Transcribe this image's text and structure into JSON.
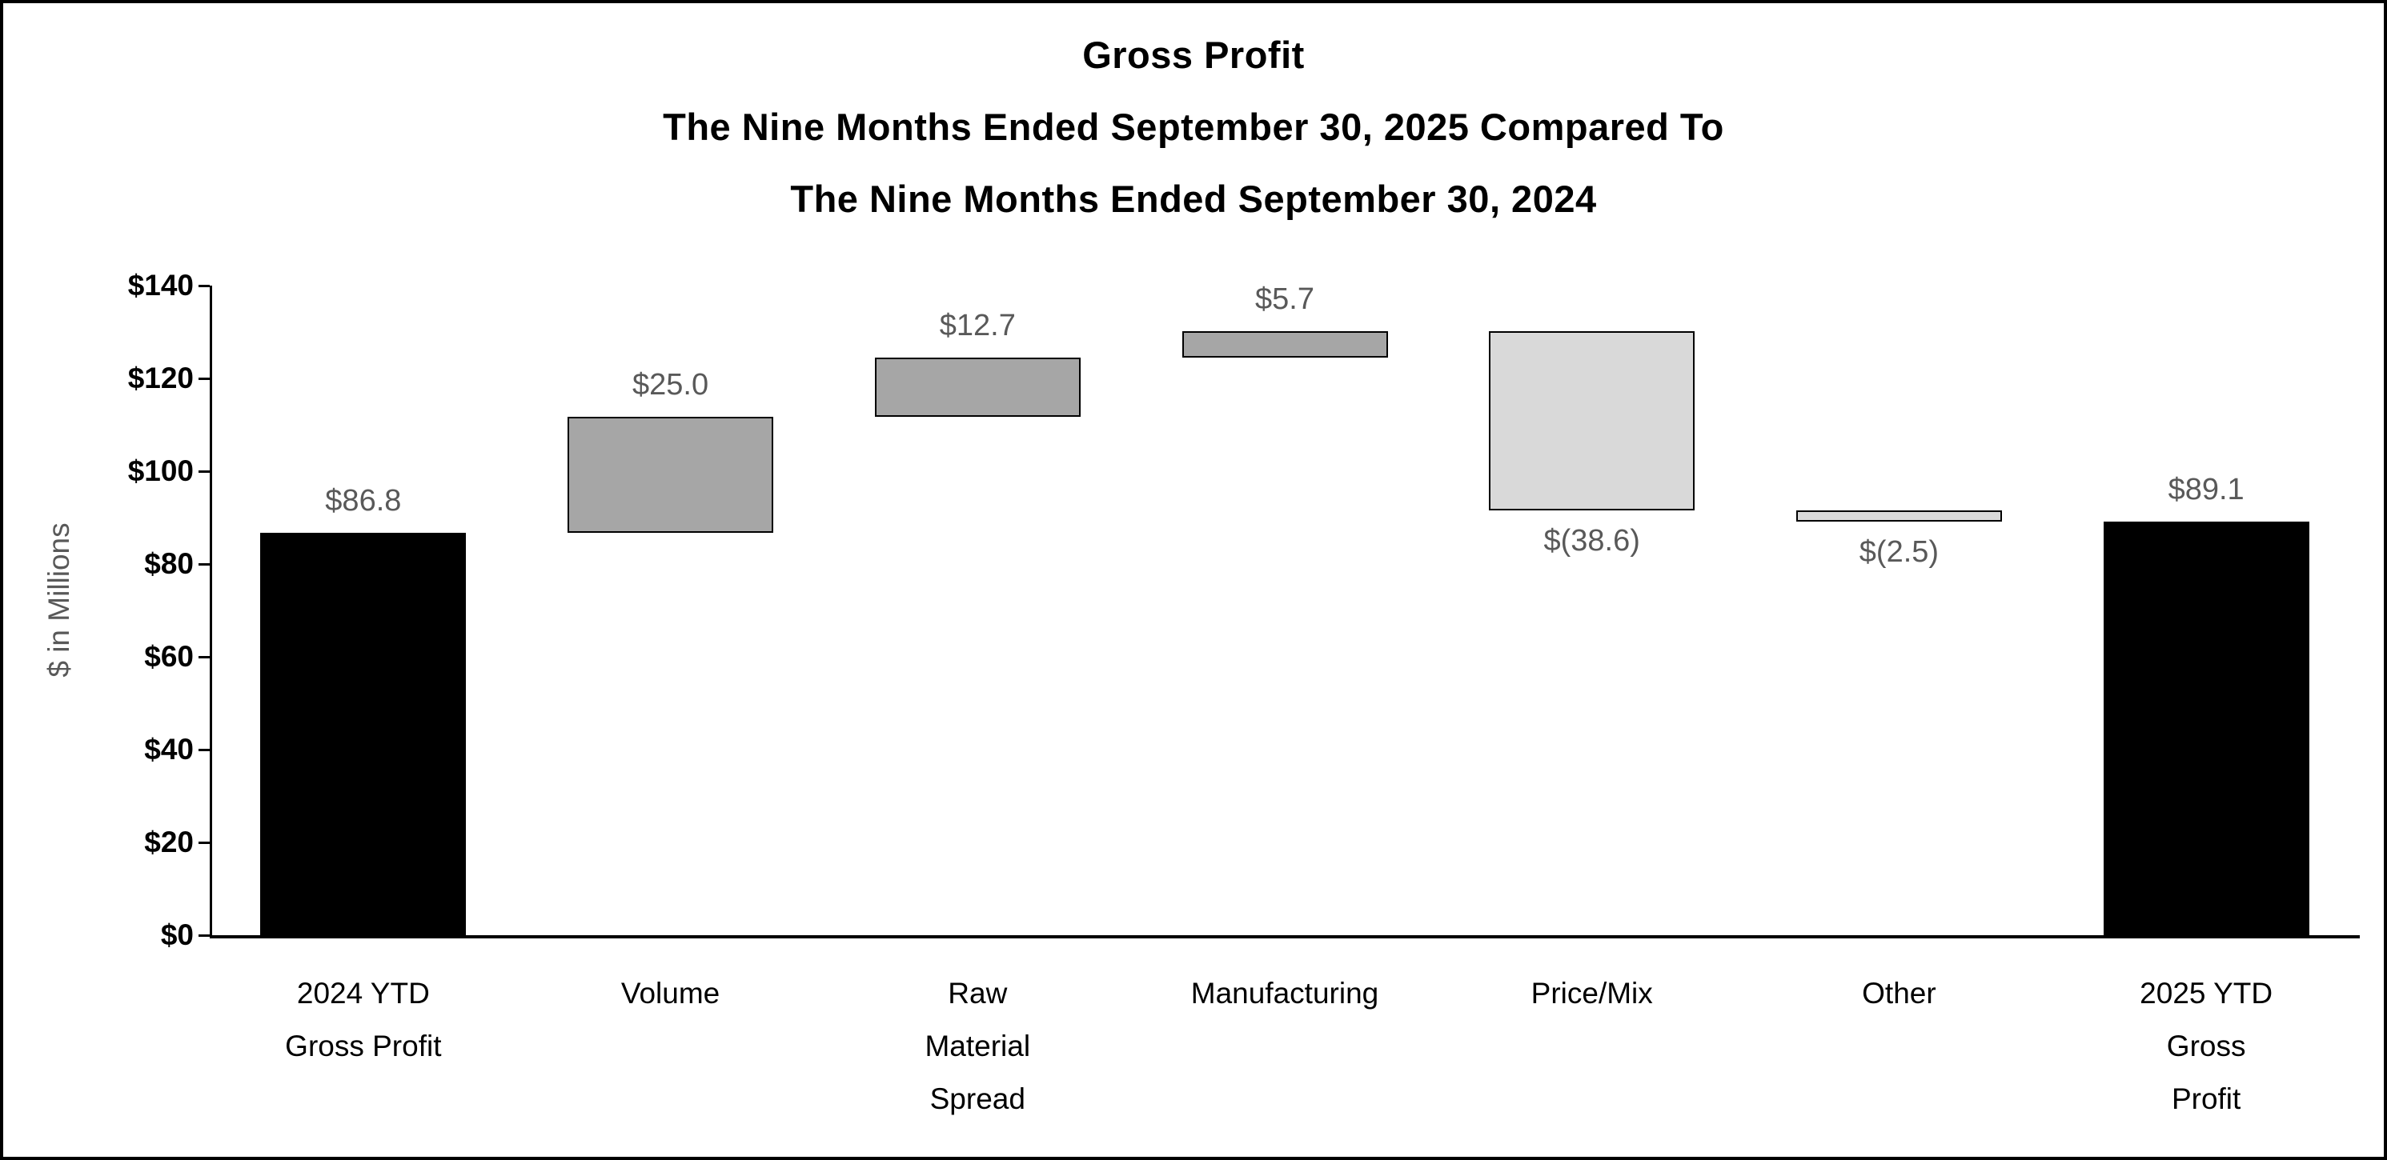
{
  "title": {
    "line1": "Gross Profit",
    "line2": "The Nine Months Ended September 30, 2025 Compared To",
    "line3": "The Nine Months Ended September 30, 2024"
  },
  "y_axis": {
    "title": "$ in Millions",
    "min": 0,
    "max": 140,
    "step": 20,
    "tick_labels": [
      "$0",
      "$20",
      "$40",
      "$60",
      "$80",
      "$100",
      "$120",
      "$140"
    ]
  },
  "chart_data": {
    "type": "bar",
    "subtype": "waterfall",
    "title": "Gross Profit",
    "subtitle": "The Nine Months Ended September 30, 2025 Compared To The Nine Months Ended September 30, 2024",
    "xlabel": "",
    "ylabel": "$ in Millions",
    "ylim": [
      0,
      140
    ],
    "grid": "off",
    "legend": "none",
    "categories": [
      "2024 YTD Gross Profit",
      "Volume",
      "Raw Material Spread",
      "Manufacturing",
      "Price/Mix",
      "Other",
      "2025 YTD Gross Profit"
    ],
    "values": [
      86.8,
      25.0,
      12.7,
      5.7,
      -38.6,
      -2.5,
      89.1
    ],
    "bars": [
      {
        "category_lines": [
          "2024 YTD",
          "Gross Profit"
        ],
        "value": 86.8,
        "start": 0,
        "end": 86.8,
        "kind": "total",
        "label": "$86.8",
        "label_position": "above"
      },
      {
        "category_lines": [
          "Volume"
        ],
        "value": 25.0,
        "start": 86.8,
        "end": 111.8,
        "kind": "increase",
        "label": "$25.0",
        "label_position": "above"
      },
      {
        "category_lines": [
          "Raw",
          "Material",
          "Spread"
        ],
        "value": 12.7,
        "start": 111.8,
        "end": 124.5,
        "kind": "increase",
        "label": "$12.7",
        "label_position": "above"
      },
      {
        "category_lines": [
          "Manufacturing"
        ],
        "value": 5.7,
        "start": 124.5,
        "end": 130.2,
        "kind": "increase",
        "label": "$5.7",
        "label_position": "above"
      },
      {
        "category_lines": [
          "Price/Mix"
        ],
        "value": -38.6,
        "start": 130.2,
        "end": 91.6,
        "kind": "decrease",
        "label": "$(38.6)",
        "label_position": "below"
      },
      {
        "category_lines": [
          "Other"
        ],
        "value": -2.5,
        "start": 91.6,
        "end": 89.1,
        "kind": "decrease",
        "label": "$(2.5)",
        "label_position": "below"
      },
      {
        "category_lines": [
          "2025 YTD",
          "Gross",
          "Profit"
        ],
        "value": 89.1,
        "start": 0,
        "end": 89.1,
        "kind": "total",
        "label": "$89.1",
        "label_position": "above"
      }
    ],
    "colors": {
      "total": "#000000",
      "increase": "#a6a6a6",
      "decrease": "#d9d9d9",
      "bar_border": "#000000",
      "value_label": "#595959",
      "y_axis_title": "#595959",
      "axis_line": "#000000",
      "tick_label": "#000000",
      "category_label": "#000000"
    }
  }
}
